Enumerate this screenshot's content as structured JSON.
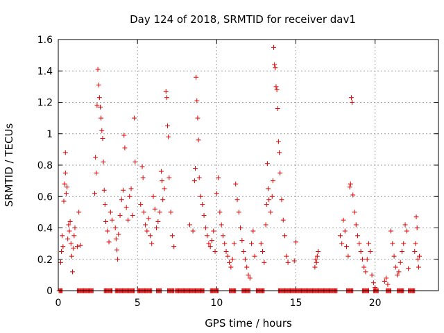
{
  "chart_data": {
    "type": "scatter",
    "title": "Day 124 of 2018, SRMTID for receiver dav1",
    "xlabel": "GPS time / hours",
    "ylabel": "SRMTID / TECUs",
    "xlim": [
      0,
      24
    ],
    "ylim": [
      0,
      1.6
    ],
    "xticks": [
      "0",
      "5",
      "10",
      "15",
      "20"
    ],
    "xtick_values": [
      0,
      5,
      10,
      15,
      20
    ],
    "yticks": [
      "0",
      "0.2",
      "0.4",
      "0.6",
      "0.8",
      "1",
      "1.2",
      "1.4",
      "1.6"
    ],
    "ytick_values": [
      0,
      0.2,
      0.4,
      0.6,
      0.8,
      1.0,
      1.2,
      1.4,
      1.6
    ],
    "grid": true,
    "marker": "+",
    "color": "#dd0000",
    "series": [
      {
        "name": "SRMTID",
        "points": [
          [
            0.15,
            0.18
          ],
          [
            0.2,
            0.25
          ],
          [
            0.25,
            0.35
          ],
          [
            0.3,
            0.28
          ],
          [
            0.35,
            0.57
          ],
          [
            0.4,
            0.68
          ],
          [
            0.45,
            0.75
          ],
          [
            0.45,
            0.88
          ],
          [
            0.5,
            0.62
          ],
          [
            0.55,
            0.66
          ],
          [
            0.6,
            0.33
          ],
          [
            0.65,
            0.42
          ],
          [
            0.7,
            0.38
          ],
          [
            0.75,
            0.44
          ],
          [
            0.8,
            0.3
          ],
          [
            0.85,
            0.22
          ],
          [
            0.9,
            0.12
          ],
          [
            0.95,
            0.27
          ],
          [
            1.0,
            0.35
          ],
          [
            1.05,
            0.4
          ],
          [
            1.2,
            0.28
          ],
          [
            1.3,
            0.5
          ],
          [
            1.4,
            0.29
          ],
          [
            2.3,
            0.62
          ],
          [
            2.35,
            0.85
          ],
          [
            2.4,
            0.75
          ],
          [
            2.45,
            1.18
          ],
          [
            2.5,
            1.41
          ],
          [
            2.55,
            1.31
          ],
          [
            2.6,
            1.23
          ],
          [
            2.65,
            1.17
          ],
          [
            2.7,
            1.1
          ],
          [
            2.75,
            1.02
          ],
          [
            2.8,
            0.97
          ],
          [
            2.85,
            0.82
          ],
          [
            2.9,
            0.64
          ],
          [
            2.95,
            0.55
          ],
          [
            3.0,
            0.44
          ],
          [
            3.1,
            0.38
          ],
          [
            3.2,
            0.31
          ],
          [
            3.3,
            0.5
          ],
          [
            3.4,
            0.45
          ],
          [
            3.6,
            0.4
          ],
          [
            3.65,
            0.33
          ],
          [
            3.7,
            0.26
          ],
          [
            3.75,
            0.2
          ],
          [
            3.8,
            0.36
          ],
          [
            3.9,
            0.48
          ],
          [
            4.0,
            0.58
          ],
          [
            4.1,
            0.64
          ],
          [
            4.15,
            0.99
          ],
          [
            4.2,
            0.91
          ],
          [
            4.3,
            0.53
          ],
          [
            4.4,
            0.45
          ],
          [
            4.5,
            0.6
          ],
          [
            4.6,
            0.65
          ],
          [
            4.7,
            0.48
          ],
          [
            4.8,
            1.1
          ],
          [
            4.85,
            0.82
          ],
          [
            5.2,
            0.55
          ],
          [
            5.3,
            0.79
          ],
          [
            5.35,
            0.72
          ],
          [
            5.4,
            0.5
          ],
          [
            5.5,
            0.42
          ],
          [
            5.6,
            0.38
          ],
          [
            5.7,
            0.46
          ],
          [
            5.8,
            0.35
          ],
          [
            5.9,
            0.3
          ],
          [
            6.0,
            0.6
          ],
          [
            6.1,
            0.52
          ],
          [
            6.2,
            0.4
          ],
          [
            6.3,
            0.44
          ],
          [
            6.4,
            0.5
          ],
          [
            6.5,
            0.76
          ],
          [
            6.55,
            0.7
          ],
          [
            6.6,
            0.58
          ],
          [
            6.7,
            0.65
          ],
          [
            6.8,
            1.27
          ],
          [
            6.85,
            1.23
          ],
          [
            6.9,
            1.05
          ],
          [
            6.95,
            0.98
          ],
          [
            7.0,
            0.72
          ],
          [
            7.1,
            0.5
          ],
          [
            7.2,
            0.35
          ],
          [
            7.3,
            0.28
          ],
          [
            8.3,
            0.42
          ],
          [
            8.5,
            0.38
          ],
          [
            8.6,
            0.7
          ],
          [
            8.65,
            0.78
          ],
          [
            8.7,
            1.36
          ],
          [
            8.75,
            1.21
          ],
          [
            8.8,
            1.1
          ],
          [
            8.85,
            0.96
          ],
          [
            8.9,
            0.72
          ],
          [
            9.0,
            0.6
          ],
          [
            9.1,
            0.55
          ],
          [
            9.2,
            0.48
          ],
          [
            9.3,
            0.4
          ],
          [
            9.4,
            0.35
          ],
          [
            9.5,
            0.3
          ],
          [
            9.6,
            0.28
          ],
          [
            9.7,
            0.32
          ],
          [
            9.8,
            0.38
          ],
          [
            9.9,
            0.25
          ],
          [
            10.0,
            0.62
          ],
          [
            10.1,
            0.72
          ],
          [
            10.2,
            0.5
          ],
          [
            10.3,
            0.42
          ],
          [
            10.4,
            0.35
          ],
          [
            10.5,
            0.3
          ],
          [
            10.6,
            0.25
          ],
          [
            10.7,
            0.22
          ],
          [
            10.8,
            0.18
          ],
          [
            10.9,
            0.15
          ],
          [
            11.0,
            0.2
          ],
          [
            11.1,
            0.3
          ],
          [
            11.2,
            0.68
          ],
          [
            11.3,
            0.58
          ],
          [
            11.4,
            0.5
          ],
          [
            11.5,
            0.4
          ],
          [
            11.6,
            0.32
          ],
          [
            11.7,
            0.25
          ],
          [
            11.8,
            0.2
          ],
          [
            11.9,
            0.15
          ],
          [
            12.0,
            0.1
          ],
          [
            12.1,
            0.08
          ],
          [
            12.2,
            0.3
          ],
          [
            12.3,
            0.38
          ],
          [
            12.4,
            0.22
          ],
          [
            12.8,
            0.3
          ],
          [
            12.9,
            0.25
          ],
          [
            13.0,
            0.18
          ],
          [
            13.1,
            0.42
          ],
          [
            13.15,
            0.55
          ],
          [
            13.2,
            0.81
          ],
          [
            13.25,
            0.65
          ],
          [
            13.3,
            0.58
          ],
          [
            13.4,
            0.5
          ],
          [
            13.5,
            0.6
          ],
          [
            13.55,
            0.7
          ],
          [
            13.6,
            1.55
          ],
          [
            13.65,
            1.44
          ],
          [
            13.7,
            1.42
          ],
          [
            13.75,
            1.3
          ],
          [
            13.8,
            1.28
          ],
          [
            13.85,
            1.16
          ],
          [
            13.9,
            0.95
          ],
          [
            13.95,
            0.88
          ],
          [
            14.0,
            0.75
          ],
          [
            14.1,
            0.58
          ],
          [
            14.2,
            0.45
          ],
          [
            14.3,
            0.35
          ],
          [
            14.4,
            0.22
          ],
          [
            14.5,
            0.18
          ],
          [
            14.9,
            0.19
          ],
          [
            15.0,
            0.31
          ],
          [
            16.2,
            0.15
          ],
          [
            16.25,
            0.2
          ],
          [
            16.3,
            0.18
          ],
          [
            16.35,
            0.22
          ],
          [
            16.4,
            0.25
          ],
          [
            17.8,
            0.35
          ],
          [
            17.9,
            0.3
          ],
          [
            18.0,
            0.45
          ],
          [
            18.1,
            0.38
          ],
          [
            18.2,
            0.28
          ],
          [
            18.3,
            0.22
          ],
          [
            18.4,
            0.66
          ],
          [
            18.45,
            0.68
          ],
          [
            18.5,
            1.23
          ],
          [
            18.55,
            1.2
          ],
          [
            18.6,
            0.61
          ],
          [
            18.7,
            0.5
          ],
          [
            18.8,
            0.42
          ],
          [
            18.9,
            0.35
          ],
          [
            19.0,
            0.3
          ],
          [
            19.1,
            0.25
          ],
          [
            19.2,
            0.2
          ],
          [
            19.3,
            0.15
          ],
          [
            19.4,
            0.12
          ],
          [
            19.5,
            0.2
          ],
          [
            19.6,
            0.3
          ],
          [
            19.7,
            0.25
          ],
          [
            19.8,
            0.1
          ],
          [
            19.9,
            0.05
          ],
          [
            20.0,
            0.02
          ],
          [
            20.6,
            0.06
          ],
          [
            20.7,
            0.08
          ],
          [
            20.8,
            0.04
          ],
          [
            21.0,
            0.38
          ],
          [
            21.1,
            0.3
          ],
          [
            21.2,
            0.22
          ],
          [
            21.3,
            0.15
          ],
          [
            21.4,
            0.1
          ],
          [
            21.5,
            0.12
          ],
          [
            21.6,
            0.18
          ],
          [
            21.7,
            0.25
          ],
          [
            21.8,
            0.3
          ],
          [
            21.9,
            0.42
          ],
          [
            22.0,
            0.38
          ],
          [
            22.1,
            0.14
          ],
          [
            22.5,
            0.25
          ],
          [
            22.55,
            0.3
          ],
          [
            22.6,
            0.47
          ],
          [
            22.65,
            0.4
          ],
          [
            22.7,
            0.2
          ],
          [
            22.75,
            0.15
          ],
          [
            22.8,
            0.22
          ]
        ]
      }
    ],
    "zero_runs": [
      [
        0.05,
        0.25
      ],
      [
        1.2,
        2.2
      ],
      [
        2.9,
        3.4
      ],
      [
        3.6,
        4.8
      ],
      [
        5.0,
        5.9
      ],
      [
        6.2,
        6.5
      ],
      [
        6.9,
        7.3
      ],
      [
        7.4,
        9.2
      ],
      [
        9.6,
        10.1
      ],
      [
        10.8,
        11.2
      ],
      [
        11.6,
        12.1
      ],
      [
        12.5,
        13.0
      ],
      [
        13.9,
        17.6
      ],
      [
        18.2,
        18.6
      ],
      [
        19.2,
        19.6
      ],
      [
        19.9,
        20.2
      ],
      [
        20.7,
        21.0
      ],
      [
        21.4,
        21.8
      ],
      [
        22.1,
        22.5
      ]
    ]
  }
}
